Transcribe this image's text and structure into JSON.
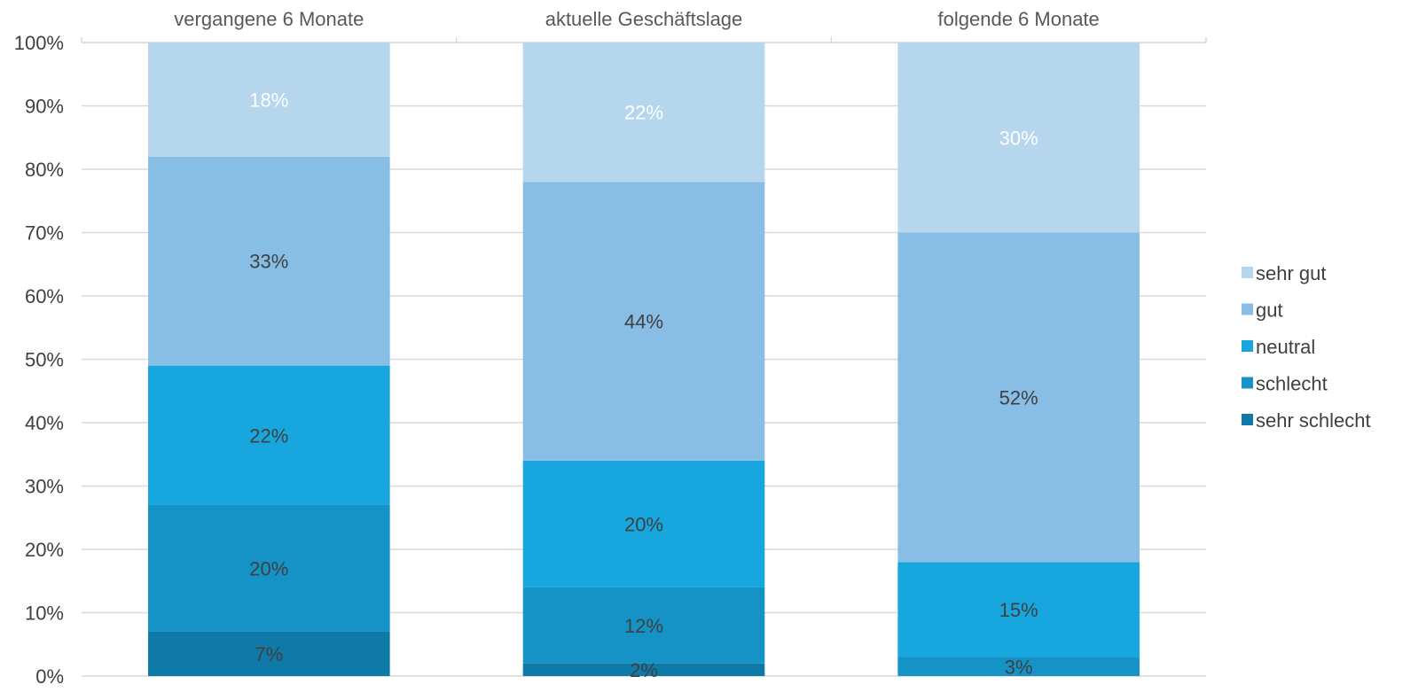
{
  "chart_data": {
    "type": "bar",
    "stacked": true,
    "percent": true,
    "categories": [
      "vergangene 6 Monate",
      "aktuelle Geschäftslage",
      "folgende 6 Monate"
    ],
    "series": [
      {
        "name": "sehr schlecht",
        "values": [
          7,
          2,
          0
        ],
        "color": "#0f7aa8",
        "label_color": "#404040"
      },
      {
        "name": "schlecht",
        "values": [
          20,
          12,
          3
        ],
        "color": "#1592c6",
        "label_color": "#404040"
      },
      {
        "name": "neutral",
        "values": [
          22,
          20,
          15
        ],
        "color": "#17a6dd",
        "label_color": "#404040"
      },
      {
        "name": "gut",
        "values": [
          33,
          44,
          52
        ],
        "color": "#88bee5",
        "label_color": "#404040"
      },
      {
        "name": "sehr gut",
        "values": [
          18,
          22,
          30
        ],
        "color": "#b6d6ed",
        "label_color": "#ffffff"
      }
    ],
    "data_labels": [
      [
        "7%",
        "2%",
        ""
      ],
      [
        "20%",
        "12%",
        "3%"
      ],
      [
        "22%",
        "20%",
        "15%"
      ],
      [
        "33%",
        "44%",
        "52%"
      ],
      [
        "18%",
        "22%",
        "30%"
      ]
    ],
    "y_ticks": [
      "0%",
      "10%",
      "20%",
      "30%",
      "40%",
      "50%",
      "60%",
      "70%",
      "80%",
      "90%",
      "100%"
    ],
    "ylim": [
      0,
      100
    ],
    "x_axis_position": "top",
    "grid": true,
    "legend_position": "right",
    "legend_order": [
      "sehr gut",
      "gut",
      "neutral",
      "schlecht",
      "sehr schlecht"
    ]
  }
}
